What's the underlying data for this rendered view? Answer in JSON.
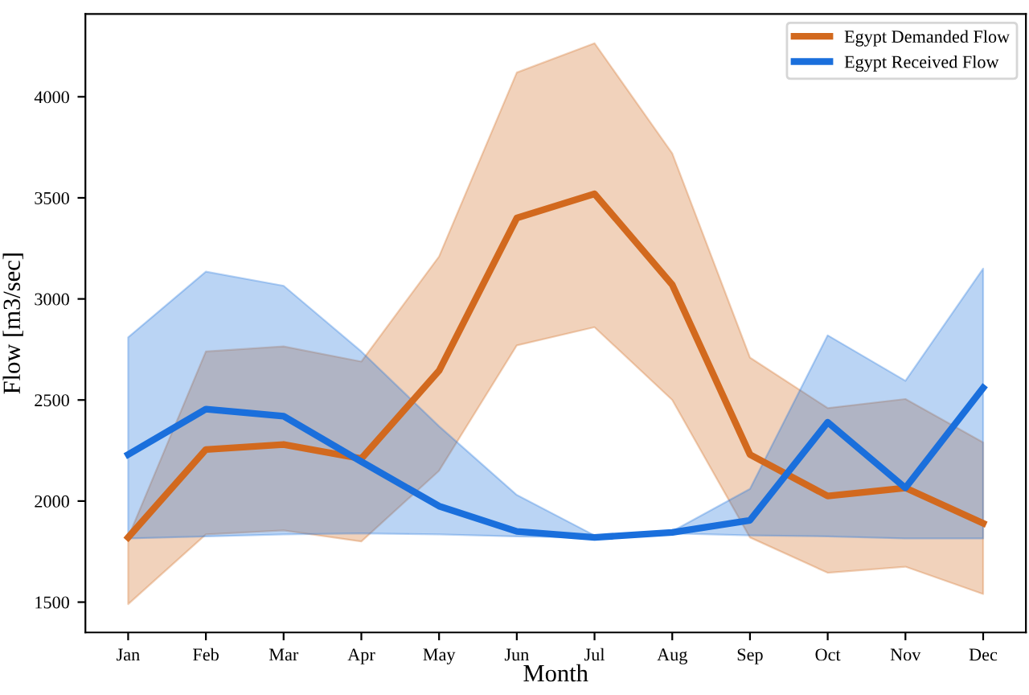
{
  "chart_data": {
    "type": "line",
    "xlabel": "Month",
    "ylabel": "Flow [m3/sec]",
    "categories": [
      "Jan",
      "Feb",
      "Mar",
      "Apr",
      "May",
      "Jun",
      "Jul",
      "Aug",
      "Sep",
      "Oct",
      "Nov",
      "Dec"
    ],
    "series": [
      {
        "name": "Egypt Demanded Flow",
        "color": "#d2691e",
        "values": [
          1820,
          2255,
          2280,
          2210,
          2645,
          3400,
          3520,
          3070,
          2230,
          2025,
          2065,
          1890
        ],
        "lower": [
          1490,
          1835,
          1855,
          1800,
          2150,
          2770,
          2860,
          2500,
          1820,
          1645,
          1675,
          1540
        ],
        "upper": [
          1820,
          2740,
          2765,
          2690,
          3210,
          4120,
          4265,
          3720,
          2710,
          2460,
          2505,
          2290
        ]
      },
      {
        "name": "Egypt Received Flow",
        "color": "#1a6fdc",
        "values": [
          2230,
          2455,
          2420,
          2195,
          1975,
          1850,
          1820,
          1845,
          1905,
          2390,
          2065,
          2560
        ],
        "lower": [
          1815,
          1825,
          1835,
          1840,
          1835,
          1825,
          1820,
          1840,
          1830,
          1825,
          1815,
          1815
        ],
        "upper": [
          2810,
          3135,
          3065,
          2740,
          2370,
          2030,
          1830,
          1850,
          2060,
          2820,
          2595,
          3150
        ]
      }
    ],
    "ylim": [
      1350,
      4410
    ],
    "yticks": [
      1500,
      2000,
      2500,
      3000,
      3500,
      4000
    ],
    "legend": "top right",
    "grid": false,
    "marker": "none",
    "line_style": "solid"
  }
}
